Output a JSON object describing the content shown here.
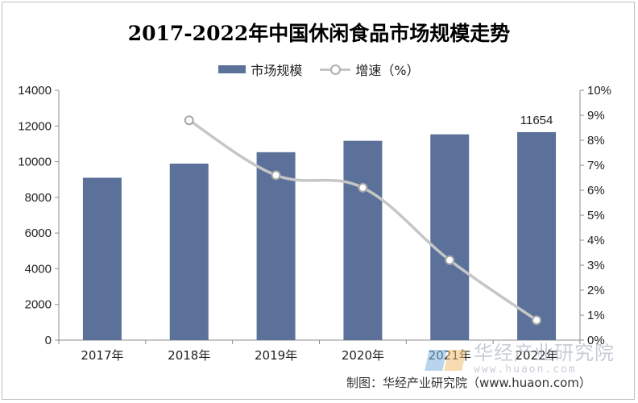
{
  "chart_data": {
    "type": "bar",
    "title": "2017-2022年中国休闲食品市场规模走势",
    "categories": [
      "2017年",
      "2018年",
      "2019年",
      "2020年",
      "2021年",
      "2022年"
    ],
    "series": [
      {
        "name": "市场规模",
        "type": "bar",
        "axis": "left",
        "color": "#5b7199",
        "values": [
          9100,
          9890,
          10530,
          11170,
          11530,
          11654
        ]
      },
      {
        "name": "增速（%）",
        "type": "line",
        "axis": "right",
        "color": "#c6c6c6",
        "values": [
          null,
          8.8,
          6.6,
          6.1,
          3.2,
          0.8
        ]
      }
    ],
    "left_axis": {
      "min": 0,
      "max": 14000,
      "ticks": [
        "0",
        "2000",
        "4000",
        "6000",
        "8000",
        "10000",
        "12000",
        "14000"
      ]
    },
    "right_axis": {
      "min": 0,
      "max": 10,
      "ticks": [
        "0%",
        "1%",
        "2%",
        "3%",
        "4%",
        "5%",
        "6%",
        "7%",
        "8%",
        "9%",
        "10%"
      ]
    },
    "data_labels": [
      {
        "category": "2022年",
        "text": "11654"
      }
    ],
    "legend_position": "top"
  },
  "legend": {
    "bar_label": "市场规模",
    "line_label": "增速（%）"
  },
  "watermark": {
    "name": "华经产业研究院",
    "url": "www.huaon.com"
  },
  "source": "制图：华经产业研究院（www.huaon.com）"
}
